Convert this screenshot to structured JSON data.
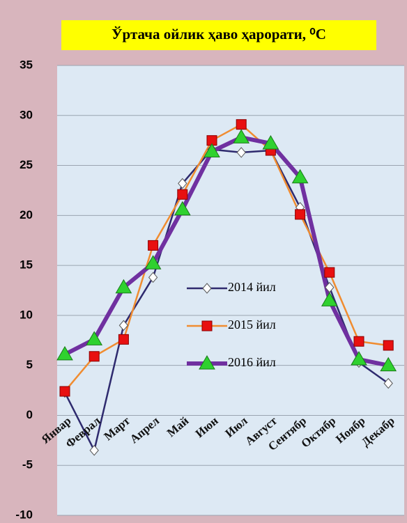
{
  "chart_data": {
    "type": "line",
    "title": "Ўртача ойлик  ҳаво ҳарорати, ⁰C",
    "categories": [
      "Январ",
      "Феврал",
      "Март",
      "Апрел",
      "Май",
      "Июн",
      "Июл",
      "Август",
      "Сентябр",
      "Октябр",
      "Ноябр",
      "Декабр"
    ],
    "series": [
      {
        "name": "2014 йил",
        "color": "#2e2a6e",
        "values": [
          2.3,
          -3.5,
          9.0,
          13.8,
          23.2,
          26.6,
          26.3,
          26.5,
          20.8,
          12.8,
          5.3,
          3.2
        ]
      },
      {
        "name": "2015 йил",
        "color": "#f08c30",
        "values": [
          2.4,
          5.9,
          7.6,
          17.0,
          22.1,
          27.5,
          29.1,
          26.5,
          20.1,
          14.3,
          7.4,
          7.0
        ]
      },
      {
        "name": "2016 йил",
        "color": "#7030a0",
        "values": [
          6.1,
          7.6,
          12.8,
          15.2,
          20.6,
          26.4,
          27.8,
          27.2,
          23.8,
          11.5,
          5.6,
          5.0
        ]
      }
    ],
    "ylim": [
      -10,
      35
    ],
    "yticks": [
      -10,
      -5,
      0,
      5,
      10,
      15,
      20,
      25,
      30,
      35
    ],
    "grid": true,
    "legend": "center"
  }
}
